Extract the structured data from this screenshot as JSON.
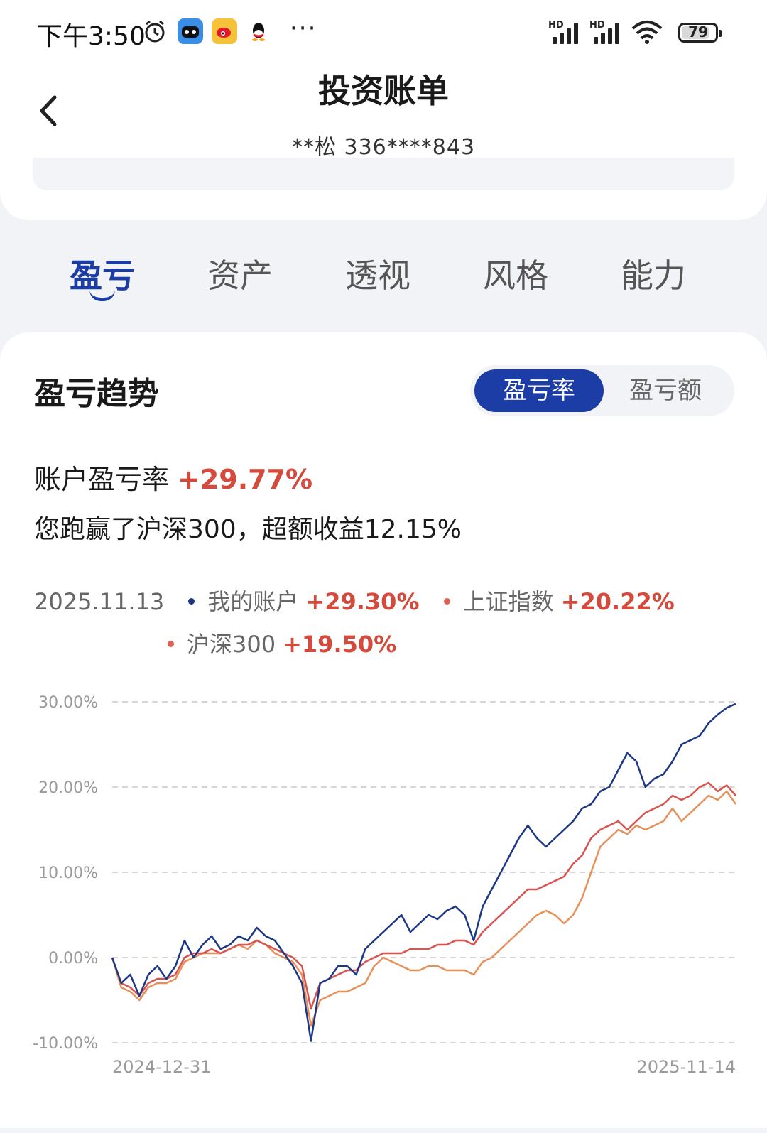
{
  "status_bar": {
    "time": "下午3:50",
    "dots": "···",
    "battery": "79",
    "hd1": "HD",
    "hd2": "HD"
  },
  "header": {
    "title": "投资账单",
    "account": "**松  336****843"
  },
  "tabs": [
    {
      "label": "盈亏",
      "active": true
    },
    {
      "label": "资产",
      "active": false
    },
    {
      "label": "透视",
      "active": false
    },
    {
      "label": "风格",
      "active": false
    },
    {
      "label": "能力",
      "active": false
    }
  ],
  "section": {
    "title": "盈亏趋势",
    "toggle": {
      "active": "盈亏率",
      "inactive": "盈亏额"
    },
    "rate_label": "账户盈亏率",
    "rate_value": "+29.77%",
    "beat_text": "您跑赢了沪深300，超额收益12.15%"
  },
  "legend": {
    "date": "2025.11.13",
    "items": [
      {
        "name": "我的账户",
        "value": "+29.30%",
        "color": "#1c3785"
      },
      {
        "name": "上证指数",
        "value": "+20.22%",
        "color": "#e06056"
      },
      {
        "name": "沪深300",
        "value": "+19.50%",
        "color": "#e06056"
      }
    ]
  },
  "chart_data": {
    "type": "line",
    "y_ticks": [
      "30.00%",
      "20.00%",
      "10.00%",
      "0.00%",
      "-10.00%"
    ],
    "ylim": [
      -10,
      30
    ],
    "x_labels": [
      "2024-12-31",
      "2025-11-14"
    ],
    "grid": true,
    "series": [
      {
        "name": "我的账户",
        "color": "#1c3785",
        "values": [
          0,
          -3,
          -2,
          -4.5,
          -2,
          -1,
          -2.5,
          -1,
          2,
          0,
          1.5,
          2.5,
          1,
          1.5,
          2.5,
          2,
          3.5,
          2.5,
          2,
          0.5,
          -1,
          -3,
          -9.8,
          -3,
          -2.5,
          -1,
          -1,
          -2,
          1,
          2,
          3,
          4,
          5,
          3,
          4,
          5,
          4.5,
          5.5,
          6,
          5,
          2,
          6,
          8,
          10,
          12,
          14,
          15.5,
          14,
          13,
          14,
          15,
          16,
          17.5,
          18,
          19.5,
          20,
          22,
          24,
          23,
          20,
          21,
          21.5,
          23,
          25,
          25.5,
          26,
          27.5,
          28.5,
          29.3,
          29.77
        ]
      },
      {
        "name": "上证指数",
        "color": "#d9534f",
        "values": [
          0,
          -3,
          -3.5,
          -4.5,
          -3,
          -2.5,
          -2.5,
          -2,
          0,
          0.5,
          0.5,
          1,
          0.5,
          1,
          1.5,
          1.5,
          2,
          1.5,
          1,
          0.5,
          0,
          -1,
          -6,
          -3,
          -2.5,
          -2,
          -1.5,
          -1.5,
          -0.5,
          0,
          0.5,
          0.5,
          0.5,
          1,
          1,
          1,
          1.5,
          1.5,
          2,
          2,
          1.5,
          3,
          4,
          5,
          6,
          7,
          8,
          8,
          8.5,
          9,
          9.5,
          11,
          12,
          14,
          15,
          15.5,
          16,
          15,
          16,
          17,
          17.5,
          18,
          19,
          18.5,
          19,
          20,
          20.5,
          19.5,
          20.2,
          19
        ]
      },
      {
        "name": "沪深300",
        "color": "#e8905a",
        "values": [
          0,
          -3.5,
          -4,
          -5,
          -3.5,
          -3,
          -3,
          -2.5,
          -0.5,
          0,
          0.5,
          0.5,
          0.5,
          1,
          1.5,
          1,
          2,
          1.5,
          0.5,
          0,
          -0.5,
          -2,
          -8,
          -5,
          -4.5,
          -4,
          -4,
          -3.5,
          -3,
          -1,
          0,
          -0.5,
          -1,
          -1.5,
          -1.5,
          -1,
          -1,
          -1.5,
          -1.5,
          -1.5,
          -2,
          -0.5,
          0,
          1,
          2,
          3,
          4,
          5,
          5.5,
          5,
          4,
          5,
          7,
          10,
          13,
          14,
          15,
          14.5,
          15.5,
          15,
          15.5,
          16,
          17.5,
          16,
          17,
          18,
          19,
          18.5,
          19.5,
          18
        ]
      }
    ]
  }
}
